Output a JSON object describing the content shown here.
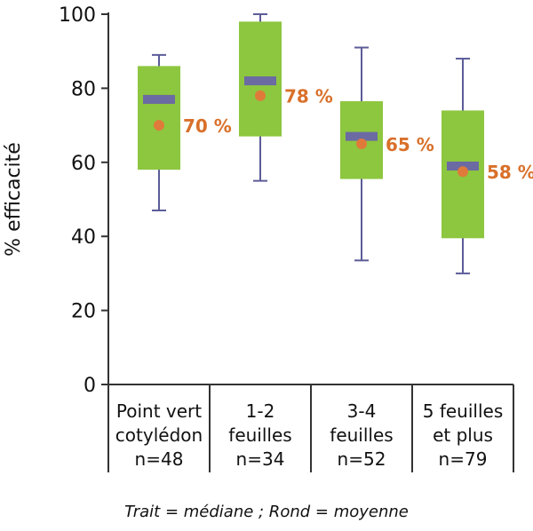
{
  "chart_data": {
    "type": "box",
    "ylabel": "% efficacité",
    "ylim": [
      0,
      100
    ],
    "yticks": [
      0,
      20,
      40,
      60,
      80,
      100
    ],
    "grid": false,
    "categories": [
      {
        "lines": [
          "Point vert",
          "cotylédon",
          "n=48"
        ]
      },
      {
        "lines": [
          "1-2",
          "feuilles",
          "n=34"
        ]
      },
      {
        "lines": [
          "3-4",
          "feuilles",
          "n=52"
        ]
      },
      {
        "lines": [
          "5 feuilles",
          "et plus",
          "n=79"
        ]
      }
    ],
    "boxes": [
      {
        "min": 47,
        "q1": 58,
        "median": 77,
        "q3": 86,
        "max": 89,
        "mean": 70,
        "mean_label": "70 %"
      },
      {
        "min": 55,
        "q1": 67,
        "median": 82,
        "q3": 98,
        "max": 100,
        "mean": 78,
        "mean_label": "78 %"
      },
      {
        "min": 33.5,
        "q1": 55.5,
        "median": 67,
        "q3": 76.5,
        "max": 91,
        "mean": 65,
        "mean_label": "65 %"
      },
      {
        "min": 30,
        "q1": 39.5,
        "median": 59,
        "q3": 74,
        "max": 88,
        "mean": 57.5,
        "mean_label": "58 %"
      }
    ],
    "caption": "Trait = médiane ; Rond = moyenne",
    "colors": {
      "box": "#8dc63f",
      "median": "#6b6aa3",
      "whisker": "#5c5c99",
      "mean": "#e07a3a",
      "mean_label": "#d9702a",
      "axis": "#333333"
    }
  }
}
